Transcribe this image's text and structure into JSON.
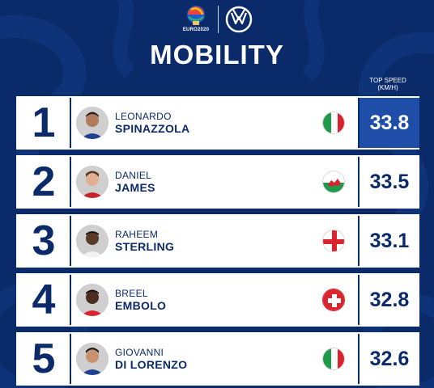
{
  "header": {
    "logo_text": "EURO2020",
    "title": "MOBILITY",
    "column_label_line1": "TOP SPEED",
    "column_label_line2": "(KM/H)"
  },
  "rows": [
    {
      "rank": "1",
      "first_name": "LEONARDO",
      "last_name": "SPINAZZOLA",
      "flag": "italy-flag-icon",
      "speed": "33.8"
    },
    {
      "rank": "2",
      "first_name": "DANIEL",
      "last_name": "JAMES",
      "flag": "wales-flag-icon",
      "speed": "33.5"
    },
    {
      "rank": "3",
      "first_name": "RAHEEM",
      "last_name": "STERLING",
      "flag": "england-flag-icon",
      "speed": "33.1"
    },
    {
      "rank": "4",
      "first_name": "BREEL",
      "last_name": "EMBOLO",
      "flag": "switzerland-flag-icon",
      "speed": "32.8"
    },
    {
      "rank": "5",
      "first_name": "GIOVANNI",
      "last_name": "DI LORENZO",
      "flag": "italy-flag-icon",
      "speed": "32.6"
    }
  ],
  "colors": {
    "background": "#0b2a6a",
    "highlight": "#1f4ea8",
    "text": "#0b2a6a"
  }
}
